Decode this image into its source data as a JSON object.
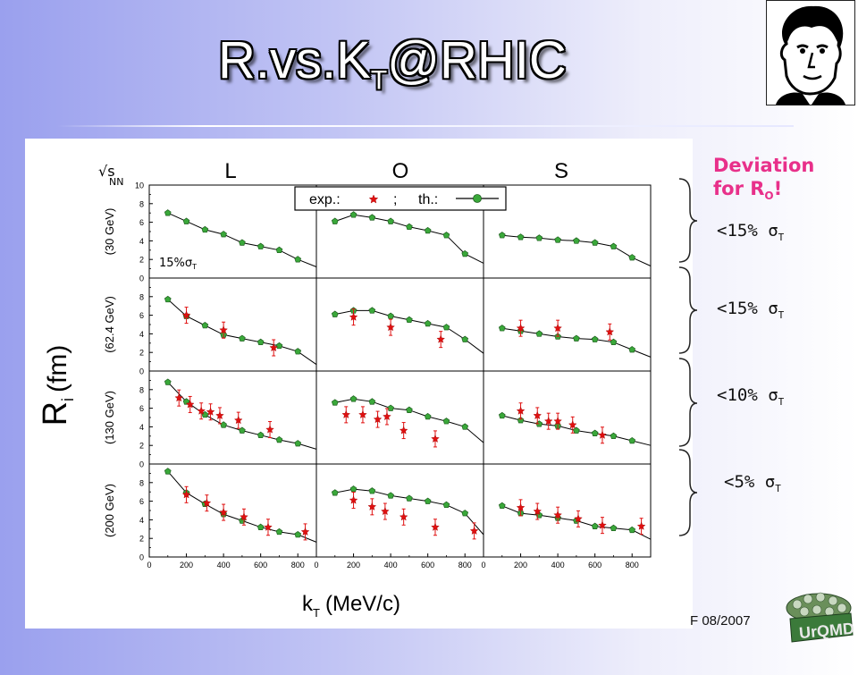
{
  "slide": {
    "title_main": "R.vs.K",
    "title_sub": "T",
    "title_end": "@RHIC",
    "side_heading_line1": "Deviation",
    "side_heading_line2_prefix": "for R",
    "side_heading_line2_sub": "O",
    "side_heading_line2_suffix": "!",
    "deviations": [
      {
        "text": "<15% σ",
        "sub": "T"
      },
      {
        "text": "<15% σ",
        "sub": "T"
      },
      {
        "text": "<10% σ",
        "sub": "T"
      },
      {
        "text": "<5% σ",
        "sub": "T"
      }
    ],
    "footer": "F 08/2007",
    "logo_text": "UrQMD"
  },
  "chart_data": {
    "type": "scatter",
    "column_titles": [
      "L",
      "O",
      "S"
    ],
    "row_labels": [
      "(30 GeV)",
      "(62.4 GeV)",
      "(130 GeV)",
      "(200 GeV)"
    ],
    "sqrt_label": "√s",
    "sqrt_sub": "NN",
    "ylabel_main": "R",
    "ylabel_sub": "i",
    "ylabel_unit": "(fm)",
    "xlabel_main": "k",
    "xlabel_sub": "T",
    "xlabel_unit": "(MeV/c)",
    "annotation": "15%σ",
    "annotation_sub": "T",
    "legend": {
      "exp": "exp.:",
      "sep": ";",
      "th": "th.:"
    },
    "xlim": [
      0,
      900
    ],
    "ylim": [
      0,
      10
    ],
    "yticks_top": [
      0,
      2,
      4,
      6,
      8,
      10
    ],
    "yticks": [
      0,
      2,
      4,
      6,
      8
    ],
    "xticks": [
      0,
      200,
      400,
      600,
      800
    ],
    "th_x": [
      100,
      200,
      300,
      400,
      500,
      600,
      700,
      800,
      900
    ],
    "th": [
      [
        [
          7.0,
          6.1,
          5.2,
          4.7,
          3.8,
          3.4,
          3.0,
          2.0,
          1.2
        ],
        [
          6.1,
          6.8,
          6.5,
          6.1,
          5.5,
          5.1,
          4.6,
          2.6,
          1.6
        ],
        [
          4.6,
          4.4,
          4.3,
          4.1,
          4.0,
          3.8,
          3.4,
          2.2,
          1.3
        ]
      ],
      [
        [
          7.7,
          5.9,
          4.9,
          3.9,
          3.5,
          3.1,
          2.7,
          2.1,
          0.7
        ],
        [
          6.1,
          6.5,
          6.5,
          5.9,
          5.5,
          5.1,
          4.7,
          3.4,
          1.9
        ],
        [
          4.6,
          4.3,
          4.0,
          3.7,
          3.5,
          3.4,
          3.1,
          2.3,
          1.5
        ]
      ],
      [
        [
          8.8,
          6.7,
          5.3,
          4.2,
          3.6,
          3.1,
          2.6,
          2.2,
          1.6
        ],
        [
          6.6,
          7.0,
          6.7,
          6.0,
          5.8,
          5.1,
          4.6,
          4.0,
          2.3
        ],
        [
          5.2,
          4.7,
          4.3,
          4.1,
          3.6,
          3.3,
          3.0,
          2.5,
          2.0
        ]
      ],
      [
        [
          9.2,
          6.9,
          5.7,
          4.6,
          3.9,
          3.2,
          2.7,
          2.4,
          1.6
        ],
        [
          6.9,
          7.3,
          7.1,
          6.6,
          6.3,
          6.0,
          5.6,
          4.7,
          2.4
        ],
        [
          5.5,
          4.7,
          4.5,
          4.2,
          3.9,
          3.3,
          3.1,
          2.9,
          1.9
        ]
      ]
    ],
    "exp": [
      [
        {
          "x": [],
          "y": []
        },
        {
          "x": [],
          "y": []
        },
        {
          "x": [],
          "y": []
        }
      ],
      [
        {
          "x": [
            200,
            400,
            670
          ],
          "y": [
            6.0,
            4.4,
            2.5
          ]
        },
        {
          "x": [
            200,
            400,
            670
          ],
          "y": [
            5.8,
            4.7,
            3.4
          ]
        },
        {
          "x": [
            200,
            400,
            680
          ],
          "y": [
            4.6,
            4.6,
            4.2
          ]
        }
      ],
      [
        {
          "x": [
            160,
            220,
            280,
            330,
            380,
            480,
            650
          ],
          "y": [
            7.1,
            6.4,
            5.7,
            5.6,
            5.2,
            4.7,
            3.7
          ]
        },
        {
          "x": [
            160,
            250,
            330,
            380,
            470,
            640
          ],
          "y": [
            5.3,
            5.3,
            4.8,
            5.1,
            3.6,
            2.7
          ]
        },
        {
          "x": [
            200,
            290,
            350,
            400,
            480,
            640
          ],
          "y": [
            5.7,
            5.2,
            4.6,
            4.6,
            4.2,
            3.1
          ]
        }
      ],
      [
        {
          "x": [
            200,
            310,
            400,
            510,
            640,
            840
          ],
          "y": [
            6.7,
            5.8,
            4.8,
            4.3,
            3.2,
            2.7
          ]
        },
        {
          "x": [
            200,
            300,
            370,
            470,
            640,
            850
          ],
          "y": [
            6.1,
            5.4,
            4.9,
            4.3,
            3.2,
            2.8
          ]
        },
        {
          "x": [
            200,
            290,
            400,
            510,
            640,
            850
          ],
          "y": [
            5.3,
            4.9,
            4.5,
            4.1,
            3.4,
            3.3
          ]
        }
      ]
    ]
  }
}
